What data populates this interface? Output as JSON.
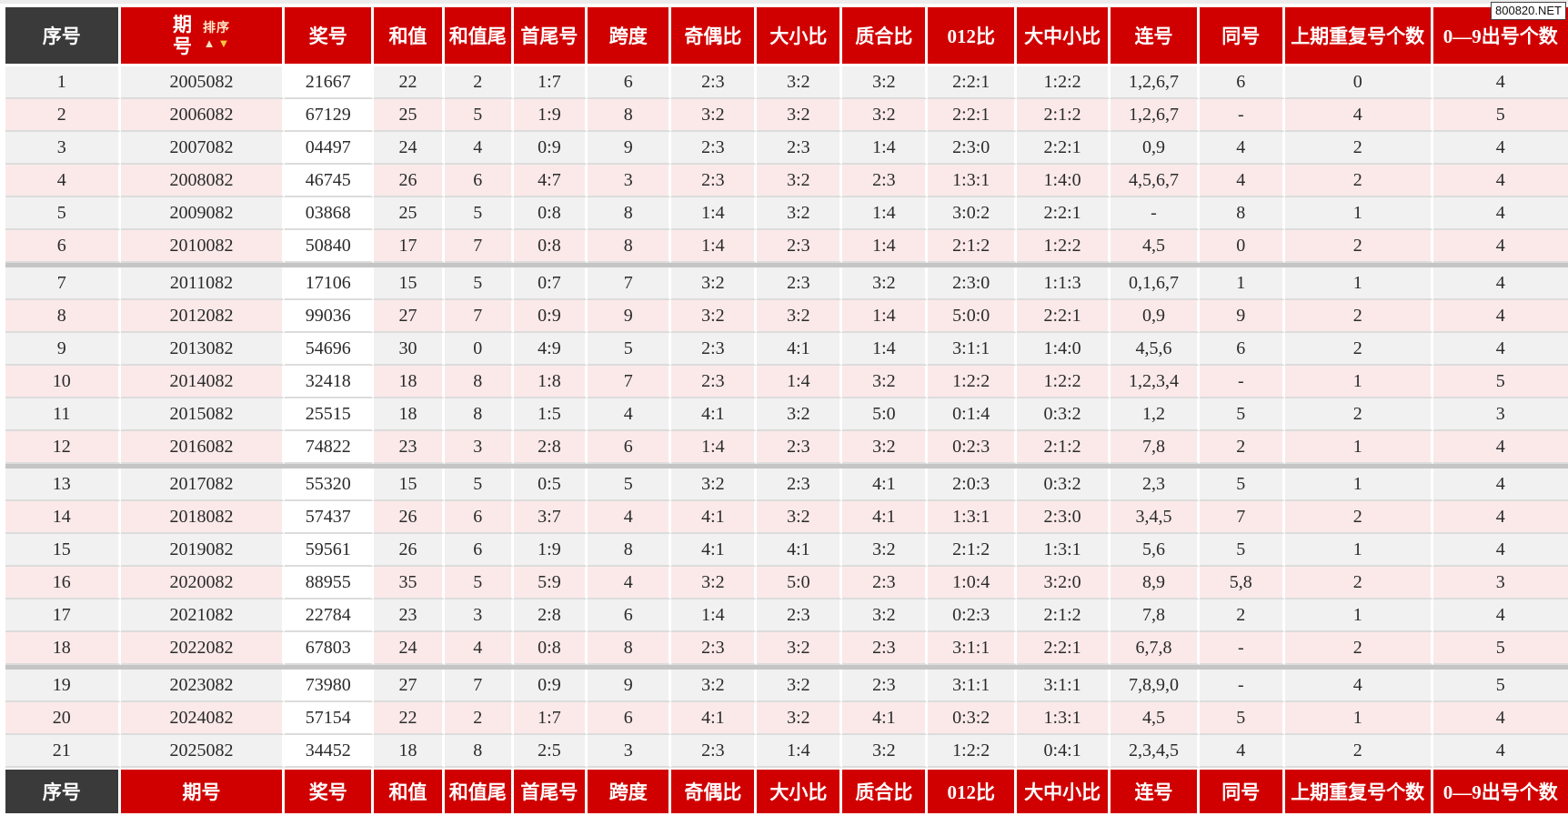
{
  "watermark": "800820.NET",
  "table": {
    "columns": [
      "序号",
      "期号",
      "奖号",
      "和值",
      "和值尾",
      "首尾号",
      "跨度",
      "奇偶比",
      "大小比",
      "质合比",
      "012比",
      "大中小比",
      "连号",
      "同号",
      "上期重复号个数",
      "0—9出号个数"
    ],
    "sort": {
      "label": "排序",
      "up": "▲",
      "down": "▼"
    },
    "rows": [
      [
        "1",
        "2005082",
        "21667",
        "22",
        "2",
        "1:7",
        "6",
        "2:3",
        "3:2",
        "3:2",
        "2:2:1",
        "1:2:2",
        "1,2,6,7",
        "6",
        "0",
        "4"
      ],
      [
        "2",
        "2006082",
        "67129",
        "25",
        "5",
        "1:9",
        "8",
        "3:2",
        "3:2",
        "3:2",
        "2:2:1",
        "2:1:2",
        "1,2,6,7",
        "-",
        "4",
        "5"
      ],
      [
        "3",
        "2007082",
        "04497",
        "24",
        "4",
        "0:9",
        "9",
        "2:3",
        "2:3",
        "1:4",
        "2:3:0",
        "2:2:1",
        "0,9",
        "4",
        "2",
        "4"
      ],
      [
        "4",
        "2008082",
        "46745",
        "26",
        "6",
        "4:7",
        "3",
        "2:3",
        "3:2",
        "2:3",
        "1:3:1",
        "1:4:0",
        "4,5,6,7",
        "4",
        "2",
        "4"
      ],
      [
        "5",
        "2009082",
        "03868",
        "25",
        "5",
        "0:8",
        "8",
        "1:4",
        "3:2",
        "1:4",
        "3:0:2",
        "2:2:1",
        "-",
        "8",
        "1",
        "4"
      ],
      [
        "6",
        "2010082",
        "50840",
        "17",
        "7",
        "0:8",
        "8",
        "1:4",
        "2:3",
        "1:4",
        "2:1:2",
        "1:2:2",
        "4,5",
        "0",
        "2",
        "4"
      ],
      [
        "7",
        "2011082",
        "17106",
        "15",
        "5",
        "0:7",
        "7",
        "3:2",
        "2:3",
        "3:2",
        "2:3:0",
        "1:1:3",
        "0,1,6,7",
        "1",
        "1",
        "4"
      ],
      [
        "8",
        "2012082",
        "99036",
        "27",
        "7",
        "0:9",
        "9",
        "3:2",
        "3:2",
        "1:4",
        "5:0:0",
        "2:2:1",
        "0,9",
        "9",
        "2",
        "4"
      ],
      [
        "9",
        "2013082",
        "54696",
        "30",
        "0",
        "4:9",
        "5",
        "2:3",
        "4:1",
        "1:4",
        "3:1:1",
        "1:4:0",
        "4,5,6",
        "6",
        "2",
        "4"
      ],
      [
        "10",
        "2014082",
        "32418",
        "18",
        "8",
        "1:8",
        "7",
        "2:3",
        "1:4",
        "3:2",
        "1:2:2",
        "1:2:2",
        "1,2,3,4",
        "-",
        "1",
        "5"
      ],
      [
        "11",
        "2015082",
        "25515",
        "18",
        "8",
        "1:5",
        "4",
        "4:1",
        "3:2",
        "5:0",
        "0:1:4",
        "0:3:2",
        "1,2",
        "5",
        "2",
        "3"
      ],
      [
        "12",
        "2016082",
        "74822",
        "23",
        "3",
        "2:8",
        "6",
        "1:4",
        "2:3",
        "3:2",
        "0:2:3",
        "2:1:2",
        "7,8",
        "2",
        "1",
        "4"
      ],
      [
        "13",
        "2017082",
        "55320",
        "15",
        "5",
        "0:5",
        "5",
        "3:2",
        "2:3",
        "4:1",
        "2:0:3",
        "0:3:2",
        "2,3",
        "5",
        "1",
        "4"
      ],
      [
        "14",
        "2018082",
        "57437",
        "26",
        "6",
        "3:7",
        "4",
        "4:1",
        "3:2",
        "4:1",
        "1:3:1",
        "2:3:0",
        "3,4,5",
        "7",
        "2",
        "4"
      ],
      [
        "15",
        "2019082",
        "59561",
        "26",
        "6",
        "1:9",
        "8",
        "4:1",
        "4:1",
        "3:2",
        "2:1:2",
        "1:3:1",
        "5,6",
        "5",
        "1",
        "4"
      ],
      [
        "16",
        "2020082",
        "88955",
        "35",
        "5",
        "5:9",
        "4",
        "3:2",
        "5:0",
        "2:3",
        "1:0:4",
        "3:2:0",
        "8,9",
        "5,8",
        "2",
        "3"
      ],
      [
        "17",
        "2021082",
        "22784",
        "23",
        "3",
        "2:8",
        "6",
        "1:4",
        "2:3",
        "3:2",
        "0:2:3",
        "2:1:2",
        "7,8",
        "2",
        "1",
        "4"
      ],
      [
        "18",
        "2022082",
        "67803",
        "24",
        "4",
        "0:8",
        "8",
        "2:3",
        "3:2",
        "2:3",
        "3:1:1",
        "2:2:1",
        "6,7,8",
        "-",
        "2",
        "5"
      ],
      [
        "19",
        "2023082",
        "73980",
        "27",
        "7",
        "0:9",
        "9",
        "3:2",
        "3:2",
        "2:3",
        "3:1:1",
        "3:1:1",
        "7,8,9,0",
        "-",
        "4",
        "5"
      ],
      [
        "20",
        "2024082",
        "57154",
        "22",
        "2",
        "1:7",
        "6",
        "4:1",
        "3:2",
        "4:1",
        "0:3:2",
        "1:3:1",
        "4,5",
        "5",
        "1",
        "4"
      ],
      [
        "21",
        "2025082",
        "34452",
        "18",
        "8",
        "2:5",
        "3",
        "2:3",
        "1:4",
        "3:2",
        "1:2:2",
        "0:4:1",
        "2,3,4,5",
        "4",
        "2",
        "4"
      ]
    ],
    "footer_columns": [
      "序号",
      "期号",
      "奖号",
      "和值",
      "和值尾",
      "首尾号",
      "跨度",
      "奇偶比",
      "大小比",
      "质合比",
      "012比",
      "大中小比",
      "连号",
      "同号",
      "上期重复号个数",
      "0—9出号个数"
    ],
    "group_breaks_after": [
      6,
      12,
      18
    ]
  },
  "colors": {
    "header_red": "#d10000",
    "header_dark": "#3a3a3a",
    "row_gray": "#f1f1f1",
    "row_pink": "#fbe9e9",
    "prize_col_bg": "#ffffff",
    "group_separator": "#c5c5c5"
  }
}
